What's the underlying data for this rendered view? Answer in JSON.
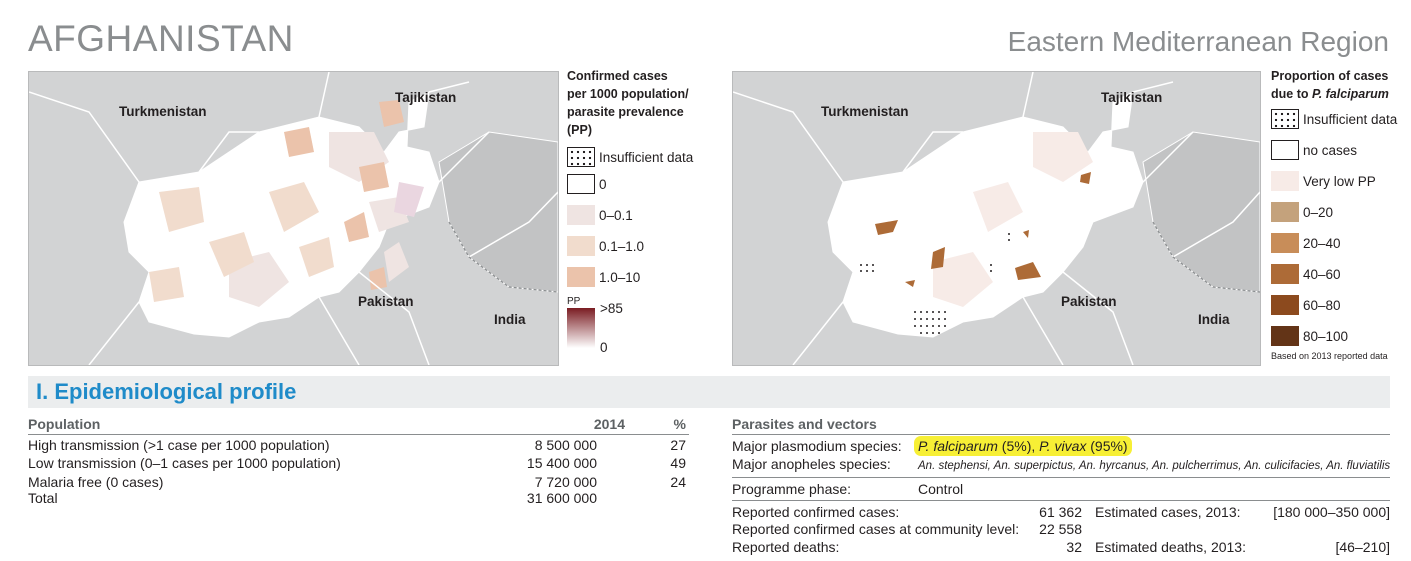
{
  "header": {
    "country": "AFGHANISTAN",
    "region": "Eastern Mediterranean Region"
  },
  "map_left": {
    "labels": {
      "turkmenistan": "Turkmenistan",
      "tajikistan": "Tajikistan",
      "pakistan": "Pakistan",
      "india": "India"
    },
    "legend": {
      "title_lines": [
        "Confirmed cases",
        "per 1000 population/",
        "parasite prevalence",
        "(PP)"
      ],
      "items": [
        {
          "label": "Insufficient data",
          "swatch": "dots"
        },
        {
          "label": "0",
          "swatch": "#ffffff"
        },
        {
          "label": "0–0.1",
          "swatch": "#efe4e2"
        },
        {
          "label": "0.1–1.0",
          "swatch": "#f1dccd"
        },
        {
          "label": "1.0–10",
          "swatch": "#ebc3ab"
        }
      ],
      "pp_label": "PP",
      "pp_high": ">85",
      "pp_low": "0",
      "pp_colors": [
        "#7a1c22",
        "#ffffff"
      ]
    }
  },
  "map_right": {
    "labels": {
      "turkmenistan": "Turkmenistan",
      "tajikistan": "Tajikistan",
      "pakistan": "Pakistan",
      "india": "India"
    },
    "legend": {
      "title_lines": [
        "Proportion of cases",
        "due to "
      ],
      "title_italic": "P. falciparum",
      "items": [
        {
          "label": "Insufficient data",
          "swatch": "dots"
        },
        {
          "label": "no cases",
          "swatch": "#ffffff"
        },
        {
          "label": "Very low PP",
          "swatch": "#f7ebe7"
        },
        {
          "label": "0–20",
          "swatch": "#c4a27c"
        },
        {
          "label": "20–40",
          "swatch": "#c88d59"
        },
        {
          "label": "40–60",
          "swatch": "#ad6b37"
        },
        {
          "label": "60–80",
          "swatch": "#8c4a1e"
        },
        {
          "label": "80–100",
          "swatch": "#633417"
        }
      ],
      "note": "Based on 2013 reported data"
    }
  },
  "section": {
    "title": "I. Epidemiological profile"
  },
  "population_table": {
    "headers": {
      "label": "Population",
      "year": "2014",
      "pct": "%"
    },
    "rows": [
      {
        "label": "High transmission (>1 case per 1000 population)",
        "value": "8 500 000",
        "pct": "27"
      },
      {
        "label": "Low transmission (0–1 cases per 1000 population)",
        "value": "15 400 000",
        "pct": "49"
      },
      {
        "label": "Malaria free (0 cases)",
        "value": "7 720 000",
        "pct": "24"
      },
      {
        "label": "Total",
        "value": "31 600 000",
        "pct": ""
      }
    ]
  },
  "parasites": {
    "header": "Parasites and vectors",
    "species_label": "Major plasmodium species:",
    "species_pf": "P. falciparum",
    "species_pf_pct": " (5%), ",
    "species_pv": "P. vivax",
    "species_pv_pct": " (95%)",
    "anopheles_label": "Major anopheles species:",
    "anopheles_value": "An. stephensi, An. superpictus, An. hyrcanus, An. pulcherrimus, An. culicifacies, An. fluviatilis",
    "phase_label": "Programme phase:",
    "phase_value": "Control",
    "confirmed_label": "Reported confirmed cases:",
    "confirmed_value": "61 362",
    "est_cases_label": "Estimated cases, 2013:",
    "est_cases_value": "[180 000–350 000]",
    "community_label": "Reported confirmed cases at community level:",
    "community_value": "22 558",
    "deaths_label": "Reported deaths:",
    "deaths_value": "32",
    "est_deaths_label": "Estimated deaths, 2013:",
    "est_deaths_value": "[46–210]"
  }
}
